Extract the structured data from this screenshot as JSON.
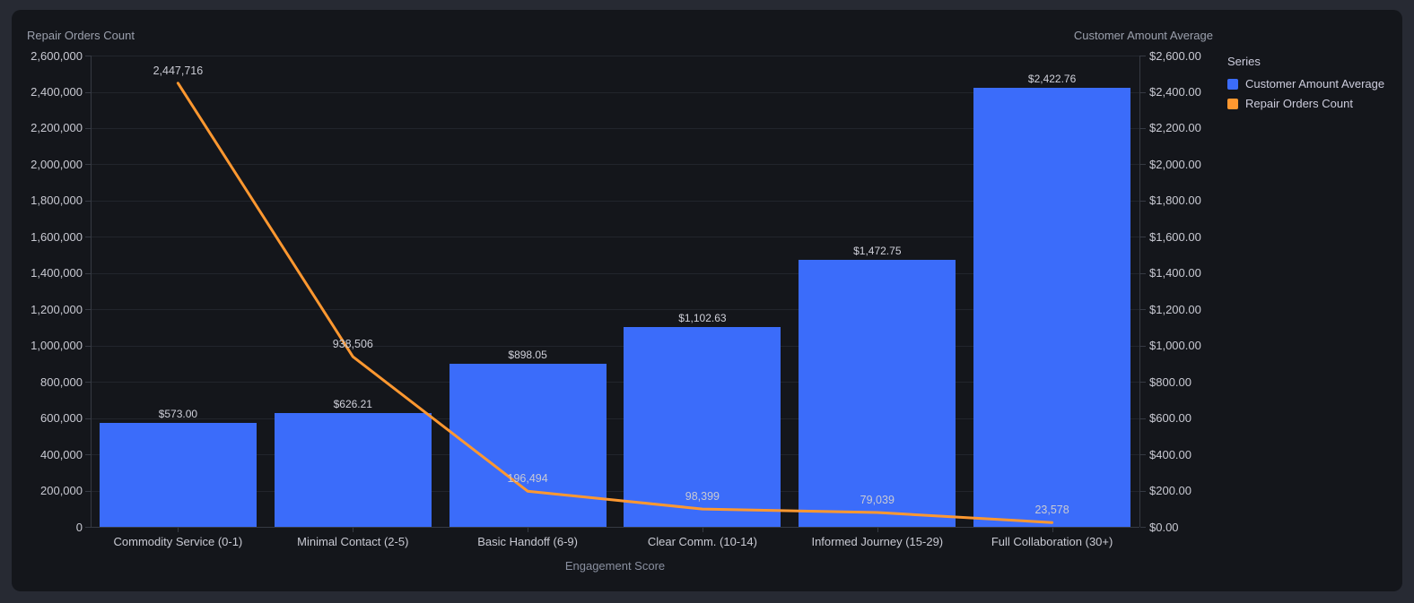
{
  "panel_name": "engagement-dual-axis-chart",
  "chart_data": {
    "type": "bar",
    "subtype": "dual-axis-bar-line-combo",
    "categories": [
      "Commodity Service (0-1)",
      "Minimal Contact (2-5)",
      "Basic Handoff (6-9)",
      "Clear Comm. (10-14)",
      "Informed Journey (15-29)",
      "Full Collaboration (30+)"
    ],
    "series": [
      {
        "name": "Customer Amount Average",
        "render": "bar",
        "axis": "right",
        "color": "#3b6cfa",
        "values": [
          573.0,
          626.21,
          898.05,
          1102.63,
          1472.75,
          2422.76
        ],
        "labels": [
          "$573.00",
          "$626.21",
          "$898.05",
          "$1,102.63",
          "$1,472.75",
          "$2,422.76"
        ]
      },
      {
        "name": "Repair Orders Count",
        "render": "line",
        "axis": "left",
        "color": "#ff9830",
        "values": [
          2447716,
          938506,
          196494,
          98399,
          79039,
          23578
        ],
        "labels": [
          "2,447,716",
          "938,506",
          "196,494",
          "98,399",
          "79,039",
          "23,578"
        ]
      }
    ],
    "left_axis": {
      "title": "Repair Orders Count",
      "min": 0,
      "max": 2600000,
      "step": 200000,
      "tick_labels": [
        "0",
        "200,000",
        "400,000",
        "600,000",
        "800,000",
        "1,000,000",
        "1,200,000",
        "1,400,000",
        "1,600,000",
        "1,800,000",
        "2,000,000",
        "2,200,000",
        "2,400,000",
        "2,600,000"
      ]
    },
    "right_axis": {
      "title": "Customer Amount Average",
      "min": 0,
      "max": 2600,
      "step": 200,
      "tick_labels": [
        "$0.00",
        "$200.00",
        "$400.00",
        "$600.00",
        "$800.00",
        "$1,000.00",
        "$1,200.00",
        "$1,400.00",
        "$1,600.00",
        "$1,800.00",
        "$2,000.00",
        "$2,200.00",
        "$2,400.00",
        "$2,600.00"
      ]
    },
    "x_axis": {
      "title": "Engagement Score"
    },
    "legend": {
      "title": "Series",
      "position": "right-top",
      "items": [
        {
          "label": "Customer Amount Average",
          "color": "#3b6cfa"
        },
        {
          "label": "Repair Orders Count",
          "color": "#ff9830"
        }
      ]
    },
    "grid": true,
    "background": "#14161b",
    "outer_background": "#272a33"
  }
}
